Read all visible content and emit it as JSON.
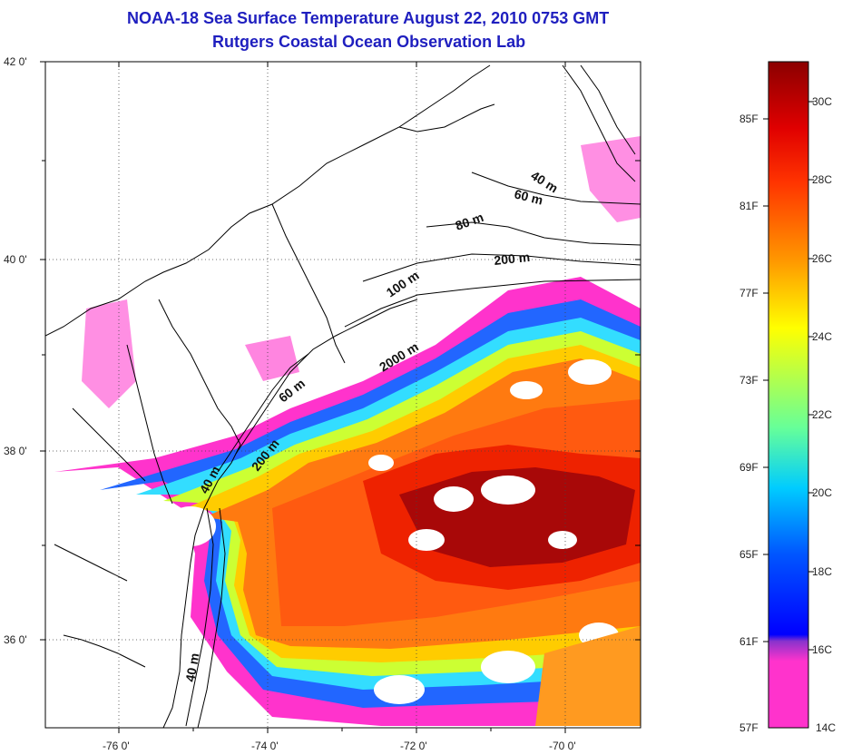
{
  "title": {
    "line1": "NOAA-18 Sea Surface Temperature August 22, 2010 0753 GMT",
    "line2": "Rutgers Coastal Ocean Observation Lab"
  },
  "map": {
    "lat_ticks": [
      "42 0'",
      "40 0'",
      "38 0'",
      "36 0'"
    ],
    "lon_ticks": [
      "-76 0'",
      "-74 0'",
      "-72 0'",
      "-70 0'"
    ],
    "depth_contour_labels": [
      "40 m",
      "60 m",
      "80 m",
      "200 m",
      "100 m",
      "2000 m",
      "60 m",
      "200 m",
      "40 m",
      "40 m"
    ],
    "grid": "dotted"
  },
  "colorbar": {
    "fahrenheit_labels": [
      "85F",
      "81F",
      "77F",
      "73F",
      "69F",
      "65F",
      "61F",
      "57F"
    ],
    "celsius_labels": [
      "30C",
      "28C",
      "26C",
      "24C",
      "22C",
      "20C",
      "18C",
      "16C",
      "14C"
    ],
    "colors": [
      "#ff33cc",
      "#8833cc",
      "#0000ff",
      "#00ccff",
      "#66ff66",
      "#ffff00",
      "#ff9900",
      "#ff0000",
      "#8b0000"
    ]
  }
}
